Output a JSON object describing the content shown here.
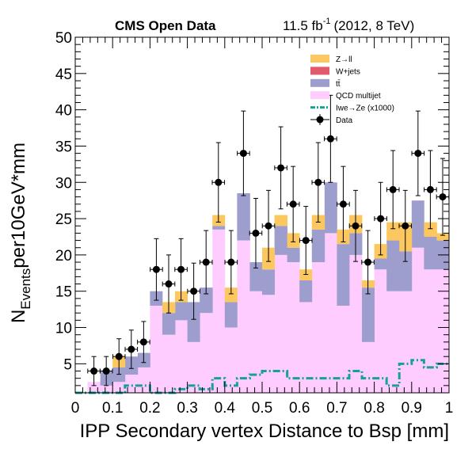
{
  "header": {
    "left": "CMS Open Data",
    "lumi_value": "11.5 fb",
    "lumi_exp": "-1",
    "lumi_tail": "(2012, 8 TeV)"
  },
  "colors": {
    "zll": "#fdc75f",
    "wjets": "#e15a6b",
    "ttbar": "#9d9ece",
    "qcd": "#ffccff",
    "signal": "#15a19a",
    "data": "#000000"
  },
  "chart_data": {
    "type": "histogram",
    "xlabel": "IPP Secondary vertex Distance to Bsp [mm]",
    "ylabel_main": "N",
    "ylabel_sub": "Events",
    "ylabel_tail": "per10GeV*mm",
    "xlim": [
      0,
      1
    ],
    "ylim": [
      1,
      50
    ],
    "x_ticks": [
      "0",
      "0.1",
      "0.2",
      "0.3",
      "0.4",
      "0.5",
      "0.6",
      "0.7",
      "0.8",
      "0.9",
      "1"
    ],
    "y_ticks": [
      "5",
      "10",
      "15",
      "20",
      "25",
      "30",
      "35",
      "40",
      "45",
      "50"
    ],
    "bin_edges": [
      0,
      0.033,
      0.067,
      0.1,
      0.133,
      0.167,
      0.2,
      0.233,
      0.267,
      0.3,
      0.333,
      0.367,
      0.4,
      0.433,
      0.467,
      0.5,
      0.533,
      0.567,
      0.6,
      0.633,
      0.667,
      0.7,
      0.733,
      0.767,
      0.8,
      0.833,
      0.867,
      0.9,
      0.933,
      0.967,
      1
    ],
    "stack": [
      {
        "name": "QCD multijet",
        "color_key": "qcd",
        "values": [
          0,
          2.5,
          2,
          2.5,
          3.5,
          4.5,
          13,
          9,
          11,
          8,
          12,
          23.5,
          10,
          22,
          15,
          14.5,
          20,
          19,
          13.5,
          19,
          23,
          13,
          20,
          8,
          18,
          15,
          15,
          21,
          18,
          18
        ]
      },
      {
        "name": "tt̄",
        "color_key": "ttbar",
        "values": [
          0,
          0,
          2,
          2,
          2.5,
          2,
          2,
          3,
          2.5,
          5.5,
          3.5,
          0.5,
          3.5,
          6.5,
          4,
          3.5,
          4,
          2,
          3,
          4.5,
          7,
          8.5,
          3,
          7.5,
          1.5,
          7,
          5.5,
          6.5,
          4.5,
          4
        ]
      },
      {
        "name": "W+jets",
        "color_key": "wjets",
        "values": [
          0,
          0,
          0,
          0,
          0,
          0,
          0,
          0,
          0,
          0,
          0,
          0,
          0,
          0,
          0,
          0,
          0,
          0,
          0,
          0,
          0,
          0,
          0,
          0,
          0,
          0,
          0,
          0,
          0,
          0
        ]
      },
      {
        "name": "Z→ll",
        "color_key": "zll",
        "values": [
          0,
          0,
          0,
          1.5,
          0,
          0,
          0,
          1.5,
          1.5,
          0,
          0,
          1.5,
          2,
          0,
          0,
          3,
          1.5,
          2,
          1.5,
          2,
          0,
          2,
          2.5,
          1,
          2,
          2.5,
          4,
          0,
          2,
          1
        ]
      }
    ],
    "signal": {
      "name": "Iwe→Ze (x1000)",
      "color_key": "signal",
      "values": [
        1,
        1,
        1,
        1,
        2,
        2,
        1,
        1,
        1.5,
        2,
        1.5,
        3,
        2,
        3,
        3.5,
        4,
        4,
        3,
        3,
        3,
        3,
        3,
        4,
        3,
        3,
        2,
        5,
        5.5,
        4.5,
        5
      ]
    },
    "data": {
      "name": "Data",
      "x": [
        0.05,
        0.083,
        0.117,
        0.15,
        0.183,
        0.217,
        0.25,
        0.283,
        0.317,
        0.35,
        0.383,
        0.417,
        0.45,
        0.483,
        0.517,
        0.55,
        0.583,
        0.617,
        0.65,
        0.683,
        0.717,
        0.75,
        0.783,
        0.817,
        0.85,
        0.883,
        0.917,
        0.95,
        0.983
      ],
      "y": [
        4,
        4,
        6,
        7,
        8,
        18,
        16,
        18,
        15,
        19,
        30,
        19,
        34,
        23,
        24,
        32,
        27,
        22,
        30,
        36,
        27,
        24,
        19,
        25,
        29,
        24,
        34,
        29,
        28
      ]
    },
    "legend": {
      "placement": "top-right",
      "entries": [
        {
          "label": "Z→ll",
          "kind": "box",
          "color_key": "zll"
        },
        {
          "label": "W+jets",
          "kind": "box",
          "color_key": "wjets"
        },
        {
          "label": "tt̄",
          "kind": "box",
          "color_key": "ttbar"
        },
        {
          "label": "QCD multijet",
          "kind": "box",
          "color_key": "qcd"
        },
        {
          "label": "Iwe→Ze (x1000)",
          "kind": "dashline",
          "color_key": "signal"
        },
        {
          "label": "Data",
          "kind": "marker",
          "color_key": "data"
        }
      ]
    }
  }
}
